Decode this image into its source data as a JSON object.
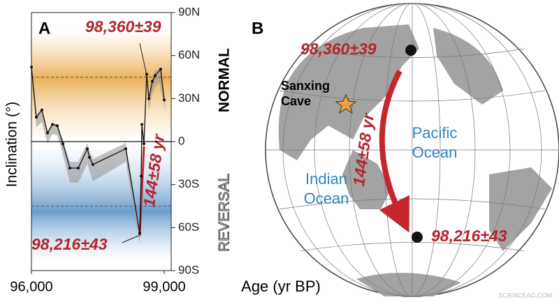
{
  "chart_data": {
    "type": "line",
    "panel_label": "A",
    "y_label": "Inclination (°)",
    "x_label": "Age (yr BP)",
    "x": [
      96000,
      96110,
      96237,
      96363,
      96474,
      96584,
      96711,
      96868,
      97058,
      97263,
      97310,
      97389,
      98132,
      98447,
      98479,
      98495,
      98542,
      98605,
      98653,
      98732,
      98795,
      98921,
      99000
    ],
    "series": [
      {
        "name": "Inclination",
        "color": "#111111",
        "values": [
          52,
          17,
          22,
          6,
          12,
          11,
          -1.5,
          -18.5,
          -18.5,
          -5,
          -11,
          -16,
          -5,
          -64,
          -24,
          12,
          -1.5,
          47,
          30,
          42,
          46,
          50.5,
          29
        ]
      }
    ],
    "xlim": [
      96000,
      99000
    ],
    "xticks": [
      {
        "value": 96000,
        "label": "96,000"
      },
      {
        "value": 99000,
        "label": "99,000"
      }
    ],
    "ylim": [
      -90,
      90
    ],
    "yticks": [
      {
        "value": 90,
        "label": "90N"
      },
      {
        "value": 60,
        "label": "60N"
      },
      {
        "value": 30,
        "label": "30N"
      },
      0,
      {
        "value": -30,
        "label": "30S"
      },
      {
        "value": -60,
        "label": "60S"
      },
      {
        "value": -90,
        "label": "90S"
      }
    ],
    "reference_lines": [
      45,
      -45
    ],
    "zone_labels": [
      "NORMAL",
      "REVERSAL"
    ],
    "annotations": [
      "98,360±39",
      "98,216±43",
      "144±58 yr"
    ]
  },
  "map": {
    "panel_label": "B",
    "annotations": [
      "98,360±39",
      "98,216±43",
      "144±58 yr"
    ],
    "site": {
      "lines": [
        "Sanxing",
        "Cave"
      ]
    },
    "oceans": [
      {
        "lines": [
          "Pacific",
          "Ocean"
        ]
      },
      {
        "lines": [
          "Indian",
          "Ocean"
        ]
      }
    ]
  },
  "watermark": "SCIENCEAG.COM"
}
